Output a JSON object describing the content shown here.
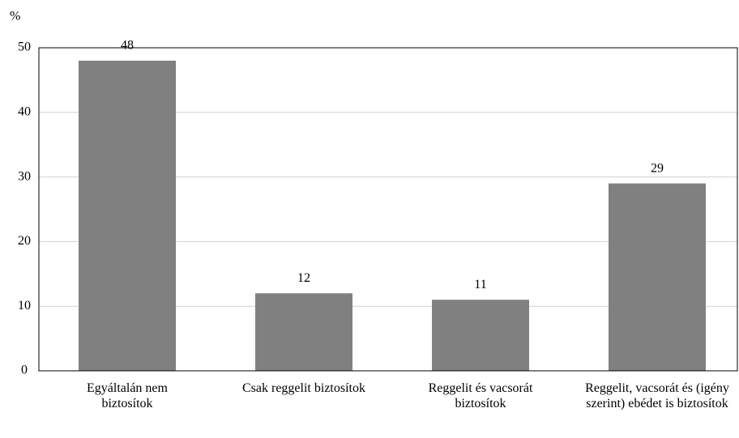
{
  "chart_data": {
    "type": "bar",
    "y_label": "%",
    "categories": [
      "Egyáltalán nem biztosítok",
      "Csak reggelit biztosítok",
      "Reggelit és vacsorát biztosítok",
      "Reggelit, vacsorát és (igény szerint) ebédet is biztosítok"
    ],
    "values": [
      48,
      12,
      11,
      29
    ],
    "color": "#808080",
    "ylim": [
      0,
      50
    ],
    "yticks": [
      0,
      10,
      20,
      30,
      40,
      50
    ],
    "grid": true
  }
}
